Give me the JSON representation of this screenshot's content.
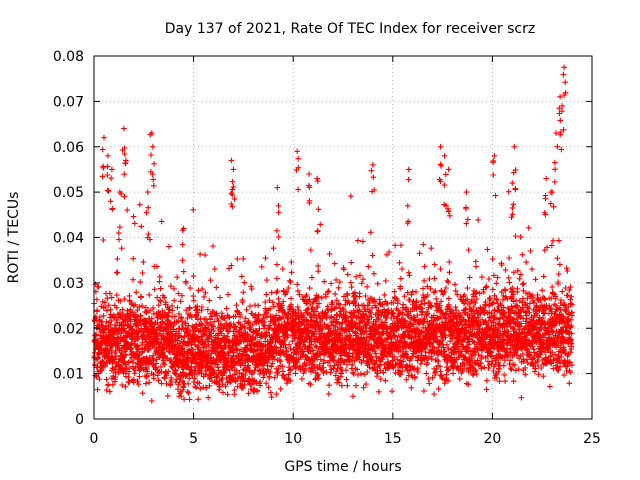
{
  "chart_data": {
    "type": "scatter",
    "title": "Day 137 of 2021, Rate Of TEC Index for receiver scrz",
    "xlabel": "GPS time / hours",
    "ylabel": "ROTI / TECUs",
    "xlim": [
      0,
      25
    ],
    "ylim": [
      0,
      0.08
    ],
    "xticks": [
      0,
      5,
      10,
      15,
      20,
      25
    ],
    "xtick_labels": [
      "0",
      "5",
      "10",
      "15",
      "20",
      "25"
    ],
    "yticks": [
      0,
      0.01,
      0.02,
      0.03,
      0.04,
      0.05,
      0.06,
      0.07,
      0.08
    ],
    "ytick_labels": [
      "0",
      "0.01",
      "0.02",
      "0.03",
      "0.04",
      "0.05",
      "0.06",
      "0.07",
      "0.08"
    ],
    "grid": true,
    "marker": "+",
    "marker_color": "#ff0000",
    "series": [
      {
        "name": "ROTI",
        "note": "dense cloud of points between 0 and 24 h, mostly 0.008-0.035 TECU/s with spikes",
        "x_range": [
          0,
          24
        ],
        "core_range": [
          0.008,
          0.035
        ],
        "spikes": [
          {
            "x": 0.5,
            "y": 0.062
          },
          {
            "x": 0.7,
            "y": 0.058
          },
          {
            "x": 0.9,
            "y": 0.055
          },
          {
            "x": 1.5,
            "y": 0.064
          },
          {
            "x": 1.6,
            "y": 0.057
          },
          {
            "x": 1.3,
            "y": 0.05
          },
          {
            "x": 2.9,
            "y": 0.063
          },
          {
            "x": 2.95,
            "y": 0.06
          },
          {
            "x": 2.7,
            "y": 0.05
          },
          {
            "x": 4.5,
            "y": 0.042
          },
          {
            "x": 6.9,
            "y": 0.057
          },
          {
            "x": 7.0,
            "y": 0.055
          },
          {
            "x": 9.2,
            "y": 0.051
          },
          {
            "x": 10.2,
            "y": 0.059
          },
          {
            "x": 10.8,
            "y": 0.054
          },
          {
            "x": 11.2,
            "y": 0.053
          },
          {
            "x": 14.0,
            "y": 0.056
          },
          {
            "x": 15.8,
            "y": 0.055
          },
          {
            "x": 17.4,
            "y": 0.06
          },
          {
            "x": 17.6,
            "y": 0.058
          },
          {
            "x": 17.8,
            "y": 0.055
          },
          {
            "x": 18.7,
            "y": 0.05
          },
          {
            "x": 20.1,
            "y": 0.058
          },
          {
            "x": 21.1,
            "y": 0.06
          },
          {
            "x": 21.0,
            "y": 0.052
          },
          {
            "x": 23.2,
            "y": 0.063
          },
          {
            "x": 23.4,
            "y": 0.071
          },
          {
            "x": 23.5,
            "y": 0.069
          },
          {
            "x": 23.6,
            "y": 0.0775
          },
          {
            "x": 22.7,
            "y": 0.053
          },
          {
            "x": 23.0,
            "y": 0.05
          }
        ],
        "low_points": [
          {
            "x": 2.9,
            "y": 0.004
          },
          {
            "x": 13.0,
            "y": 0.005
          },
          {
            "x": 14.3,
            "y": 0.006
          },
          {
            "x": 4.7,
            "y": 0.006
          },
          {
            "x": 8.0,
            "y": 0.006
          }
        ]
      }
    ]
  }
}
